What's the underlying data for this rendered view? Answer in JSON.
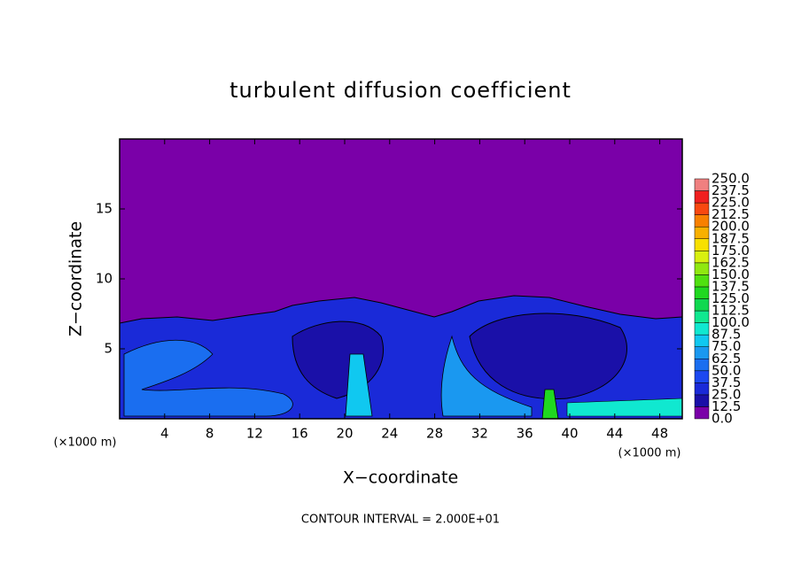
{
  "chart_data": {
    "type": "contour",
    "title": "turbulent diffusion coefficient",
    "xlabel": "X−coordinate",
    "ylabel": "Z−coordinate",
    "xunit": "(×1000 m)",
    "note": "CONTOUR INTERVAL = 2.000E+01",
    "xlim": [
      0,
      50
    ],
    "xticks": [
      4,
      8,
      12,
      16,
      20,
      24,
      28,
      32,
      36,
      40,
      44,
      48
    ],
    "ylim": [
      0,
      20
    ],
    "yticks": [
      5,
      10,
      15
    ],
    "colorbar": {
      "levels": [
        {
          "value": 0,
          "label": "0.0"
        },
        {
          "value": 12.5,
          "label": "12.5"
        },
        {
          "value": 25,
          "label": "25.0"
        },
        {
          "value": 37.5,
          "label": "37.5"
        },
        {
          "value": 50,
          "label": "50.0"
        },
        {
          "value": 62.5,
          "label": "62.5"
        },
        {
          "value": 75,
          "label": "75.0"
        },
        {
          "value": 87.5,
          "label": "87.5"
        },
        {
          "value": 100,
          "label": "100.0"
        },
        {
          "value": 112.5,
          "label": "112.5"
        },
        {
          "value": 125,
          "label": "125.0"
        },
        {
          "value": 137.5,
          "label": "137.5"
        },
        {
          "value": 150,
          "label": "150.0"
        },
        {
          "value": 162.5,
          "label": "162.5"
        },
        {
          "value": 175,
          "label": "175.0"
        },
        {
          "value": 187.5,
          "label": "187.5"
        },
        {
          "value": 200,
          "label": "200.0"
        },
        {
          "value": 212.5,
          "label": "212.5"
        },
        {
          "value": 225,
          "label": "225.0"
        },
        {
          "value": 237.5,
          "label": "237.5"
        },
        {
          "value": 250,
          "label": "250.0"
        }
      ],
      "colors": [
        "#7a00a8",
        "#1a10a8",
        "#1a2ad8",
        "#1c48f0",
        "#1a6ef0",
        "#1a98f0",
        "#10c8f0",
        "#10e8d0",
        "#10e890",
        "#10d850",
        "#20d820",
        "#50e010",
        "#90e810",
        "#d8f010",
        "#f8e000",
        "#f8b000",
        "#f88000",
        "#f84810",
        "#f02020",
        "#f08080"
      ]
    }
  }
}
